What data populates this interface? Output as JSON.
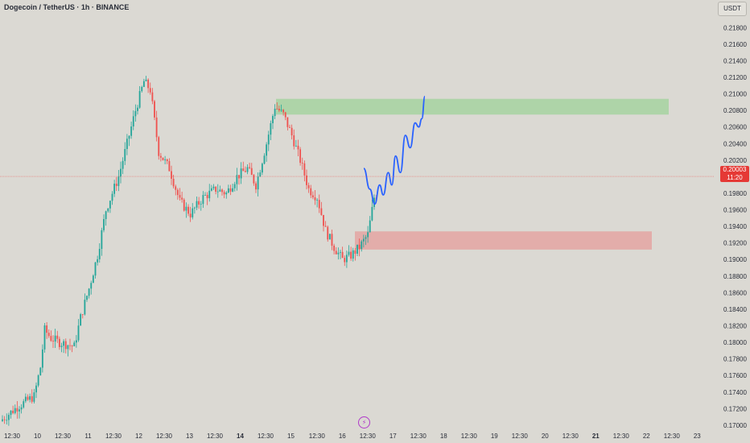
{
  "header": {
    "title": "Dogecoin / TetherUS · 1h · BINANCE",
    "currency": "USDT"
  },
  "price_tag": {
    "price": "0.20003",
    "countdown": "11:20"
  },
  "chart_data": {
    "type": "candlestick",
    "symbol": "Dogecoin / TetherUS",
    "interval": "1h",
    "exchange": "BINANCE",
    "quote_currency": "USDT",
    "y_ticks": [
      "0.21800",
      "0.21600",
      "0.21400",
      "0.21200",
      "0.21000",
      "0.20800",
      "0.20600",
      "0.20400",
      "0.20200",
      "0.19800",
      "0.19600",
      "0.19400",
      "0.19200",
      "0.19000",
      "0.18800",
      "0.18600",
      "0.18400",
      "0.18200",
      "0.18000",
      "0.17800",
      "0.17600",
      "0.17400",
      "0.17200",
      "0.17000"
    ],
    "ylim": [
      0.1696,
      0.219
    ],
    "x_ticks": [
      {
        "label": "12:30",
        "bold": false
      },
      {
        "label": "10",
        "bold": false
      },
      {
        "label": "12:30",
        "bold": false
      },
      {
        "label": "11",
        "bold": false
      },
      {
        "label": "12:30",
        "bold": false
      },
      {
        "label": "12",
        "bold": false
      },
      {
        "label": "12:30",
        "bold": false
      },
      {
        "label": "13",
        "bold": false
      },
      {
        "label": "12:30",
        "bold": false
      },
      {
        "label": "14",
        "bold": true
      },
      {
        "label": "12:30",
        "bold": false
      },
      {
        "label": "15",
        "bold": false
      },
      {
        "label": "12:30",
        "bold": false
      },
      {
        "label": "16",
        "bold": false
      },
      {
        "label": "12:30",
        "bold": false
      },
      {
        "label": "17",
        "bold": false
      },
      {
        "label": "12:30",
        "bold": false
      },
      {
        "label": "18",
        "bold": false
      },
      {
        "label": "12:30",
        "bold": false
      },
      {
        "label": "19",
        "bold": false
      },
      {
        "label": "12:30",
        "bold": false
      },
      {
        "label": "20",
        "bold": false
      },
      {
        "label": "12:30",
        "bold": false
      },
      {
        "label": "21",
        "bold": true
      },
      {
        "label": "12:30",
        "bold": false
      },
      {
        "label": "22",
        "bold": false
      },
      {
        "label": "12:30",
        "bold": false
      },
      {
        "label": "23",
        "bold": false
      }
    ],
    "candle_count": 160,
    "last_price": 0.20003,
    "zones": [
      {
        "name": "resistance",
        "from": 0.2075,
        "to": 0.2094,
        "color": "#a8d3a3"
      },
      {
        "name": "support",
        "from": 0.1912,
        "to": 0.1934,
        "color": "#e3a7a5"
      }
    ],
    "projection": [
      {
        "t": 0.0,
        "p": 0.201
      },
      {
        "t": 0.1,
        "p": 0.1985
      },
      {
        "t": 0.18,
        "p": 0.1967
      },
      {
        "t": 0.26,
        "p": 0.199
      },
      {
        "t": 0.32,
        "p": 0.1978
      },
      {
        "t": 0.4,
        "p": 0.2005
      },
      {
        "t": 0.46,
        "p": 0.199
      },
      {
        "t": 0.52,
        "p": 0.2025
      },
      {
        "t": 0.6,
        "p": 0.2005
      },
      {
        "t": 0.68,
        "p": 0.205
      },
      {
        "t": 0.76,
        "p": 0.2035
      },
      {
        "t": 0.84,
        "p": 0.2065
      },
      {
        "t": 0.9,
        "p": 0.206
      },
      {
        "t": 0.95,
        "p": 0.207
      },
      {
        "t": 1.0,
        "p": 0.2097
      }
    ],
    "colors": {
      "up": "#26a69a",
      "down": "#ef5350",
      "projection": "#2962ff",
      "last_price_line": "#ef5350"
    }
  }
}
